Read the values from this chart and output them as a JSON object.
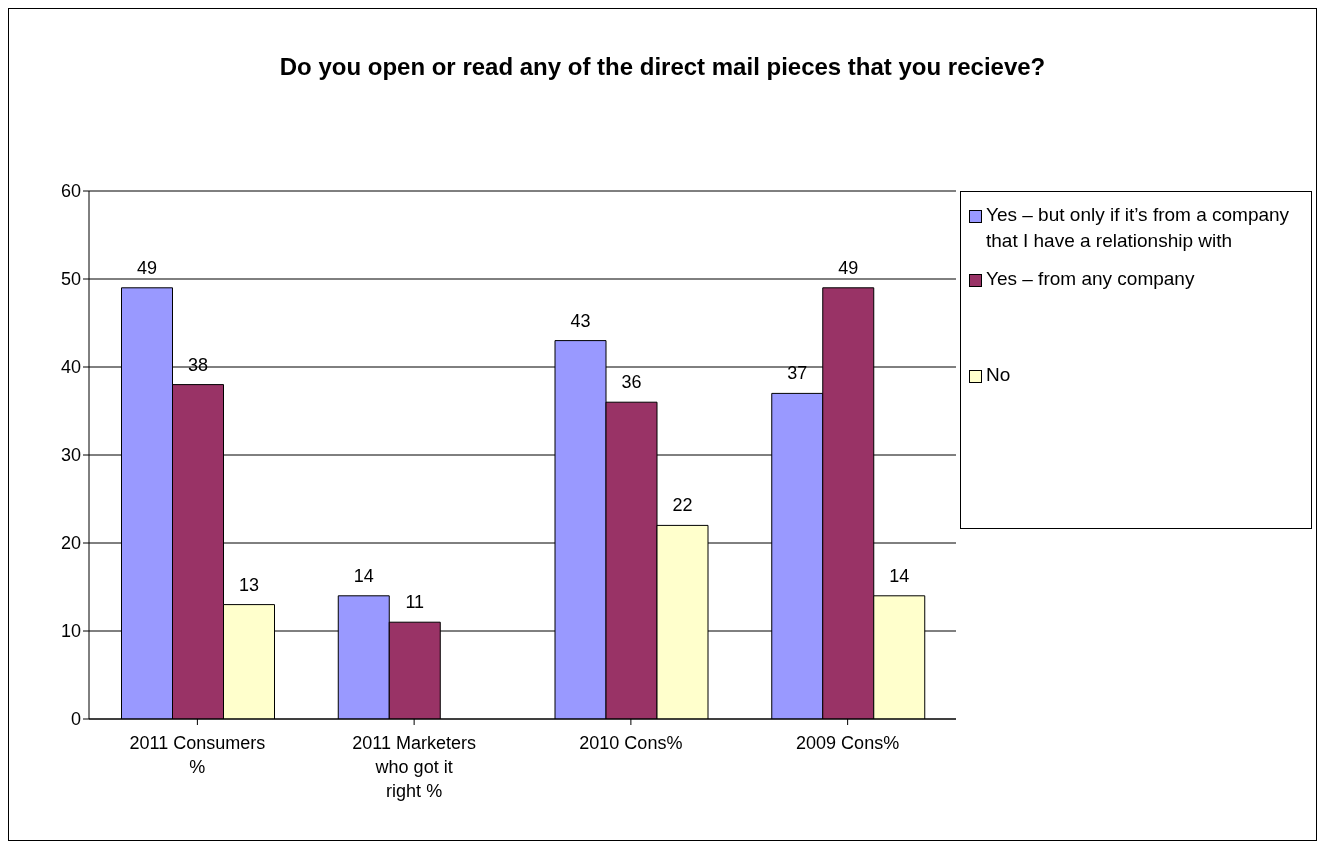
{
  "chart_data": {
    "type": "bar",
    "title": "Do you open or read any of the direct mail pieces that you recieve?",
    "categories": [
      "2011 Consumers %",
      "2011 Marketers who got it right %",
      "2010 Cons%",
      "2009 Cons%"
    ],
    "series": [
      {
        "name": "Yes – but only if it’s from a company that I have a relationship with",
        "color": "#9999ff",
        "values": [
          49,
          14,
          43,
          37
        ]
      },
      {
        "name": "Yes – from any company",
        "color": "#993366",
        "values": [
          38,
          11,
          36,
          49
        ]
      },
      {
        "name": "No",
        "color": "#ffffcc",
        "values": [
          13,
          null,
          22,
          14
        ]
      }
    ],
    "ylim": [
      0,
      60
    ],
    "yticks": [
      0,
      10,
      20,
      30,
      40,
      50,
      60
    ],
    "grid": "y",
    "legend": "right",
    "data_labels": true
  }
}
